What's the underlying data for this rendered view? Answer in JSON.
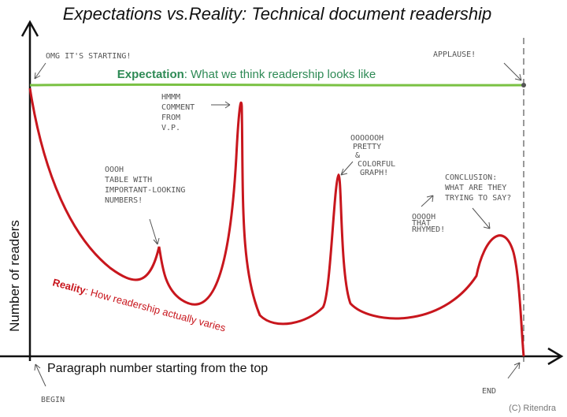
{
  "title": "Expectations vs.Reality: Technical document readership",
  "y_label": "Number of readers",
  "x_label": "Paragraph number starting from the top",
  "expectation": {
    "name": "Expectation",
    "text": ": What we think readership looks like"
  },
  "reality": {
    "name": "Reality",
    "text": ": How readership actually varies"
  },
  "annotations": [
    {
      "lines": [
        "OMG IT'S STARTING!"
      ]
    },
    {
      "lines": [
        "APPLAUSE!"
      ]
    },
    {
      "lines": [
        "HMMM",
        "COMMENT",
        "FROM",
        "V.P."
      ]
    },
    {
      "lines": [
        "OOOH",
        "TABLE WITH",
        "IMPORTANT-LOOKING",
        "NUMBERS!"
      ]
    },
    {
      "lines": [
        "OOOOOOH",
        "PRETTY",
        "&",
        "COLORFUL",
        "GRAPH!"
      ]
    },
    {
      "lines": [
        "CONCLUSION:",
        "WHAT ARE THEY",
        "TRYING TO SAY?"
      ]
    },
    {
      "lines": [
        "OOOOH",
        "THAT",
        "RHYMED!"
      ]
    },
    {
      "lines": [
        "BEGIN"
      ]
    },
    {
      "lines": [
        "END"
      ]
    }
  ],
  "credit": "(C) Ritendra"
}
